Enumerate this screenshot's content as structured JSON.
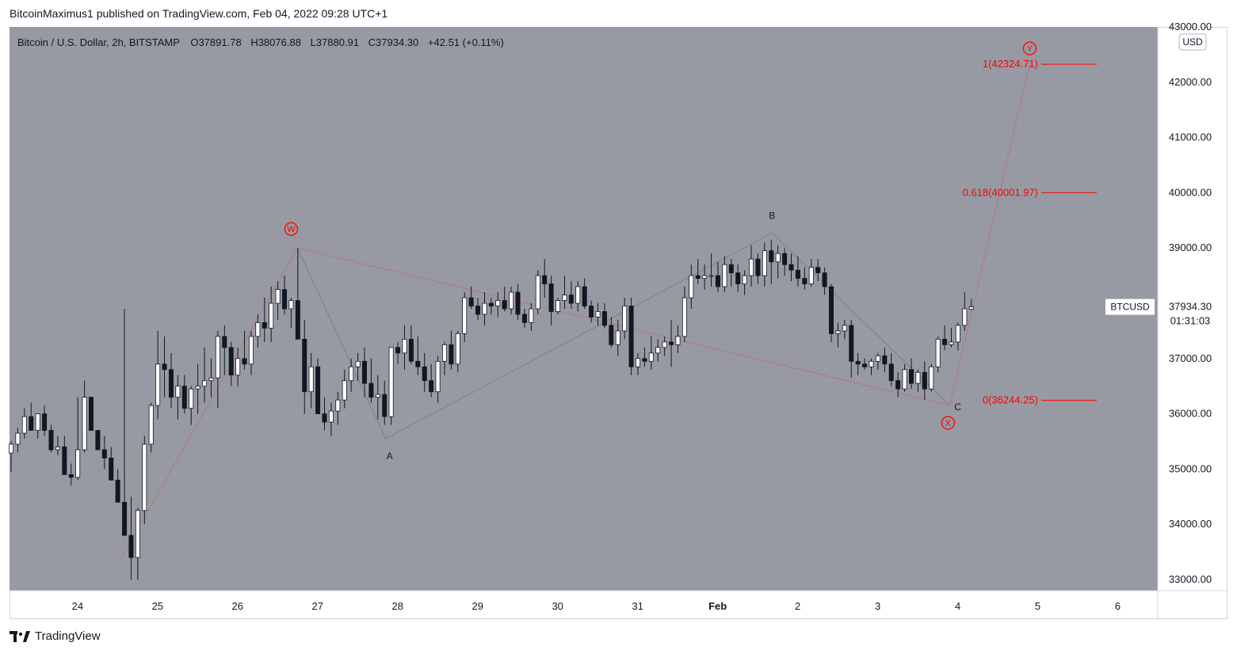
{
  "header": {
    "published_text": "BitcoinMaximus1 published on TradingView.com, Feb 04, 2022 09:28 UTC+1"
  },
  "legend": {
    "symbol": "Bitcoin / U.S. Dollar, 2h, BITSTAMP",
    "o_label": "O",
    "o_value": "37891.78",
    "h_label": "H",
    "h_value": "38076.88",
    "l_label": "L",
    "l_value": "37880.91",
    "c_label": "C",
    "c_value": "37934.30",
    "change": "+42.51 (+0.11%)"
  },
  "currency": "USD",
  "price_label": {
    "name": "BTCUSD",
    "value": "37934.30",
    "countdown": "01:31:03"
  },
  "fib_levels": [
    {
      "label": "1(42324.71)",
      "price": 42324.71
    },
    {
      "label": "0.618(40001.97)",
      "price": 40001.97
    },
    {
      "label": "0(36244.25)",
      "price": 36244.25
    }
  ],
  "wave_labels": {
    "W": "W",
    "X": "X",
    "Y": "Y",
    "A": "A",
    "B": "B",
    "C": "C"
  },
  "colors": {
    "plot_bg": "#979aa3",
    "up_candle": "#ffffff",
    "down_candle": "#131722",
    "wick": "#131722",
    "fib": "#ff0000",
    "wave_main": "#b2777e",
    "wave_sub": "#7e8089",
    "text": "#131722"
  },
  "footer": {
    "brand": "TradingView"
  },
  "chart_data": {
    "type": "candlestick",
    "symbol": "BTCUSD",
    "timeframe": "2h",
    "ylim": [
      32800,
      43000
    ],
    "yticks": [
      33000,
      34000,
      35000,
      36000,
      37000,
      38000,
      39000,
      40000,
      41000,
      42000,
      43000
    ],
    "ytick_labels": [
      "33000.00",
      "34000.00",
      "35000.00",
      "36000.00",
      "37000.00",
      "38000.00",
      "39000.00",
      "40000.00",
      "41000.00",
      "42000.00",
      "43000.00"
    ],
    "xlim_days": [
      23.15,
      37.5
    ],
    "xticks": [
      {
        "day": 24,
        "label": "24"
      },
      {
        "day": 25,
        "label": "25"
      },
      {
        "day": 26,
        "label": "26"
      },
      {
        "day": 27,
        "label": "27"
      },
      {
        "day": 28,
        "label": "28"
      },
      {
        "day": 29,
        "label": "29"
      },
      {
        "day": 30,
        "label": "30"
      },
      {
        "day": 31,
        "label": "31"
      },
      {
        "day": 32,
        "label": "Feb"
      },
      {
        "day": 33,
        "label": "2"
      },
      {
        "day": 34,
        "label": "3"
      },
      {
        "day": 35,
        "label": "4"
      },
      {
        "day": 36,
        "label": "5"
      },
      {
        "day": 37,
        "label": "6"
      }
    ],
    "wave_path_main": [
      {
        "day": 24.55,
        "price": 33400
      },
      {
        "day": 26.75,
        "price": 39000
      },
      {
        "day": 34.9,
        "price": 36150
      },
      {
        "day": 35.9,
        "price": 42324.71
      }
    ],
    "wave_path_sub": [
      {
        "day": 26.75,
        "price": 39000
      },
      {
        "day": 27.85,
        "price": 35550
      },
      {
        "day": 32.68,
        "price": 39270
      },
      {
        "day": 34.9,
        "price": 36150
      }
    ],
    "candles": [
      [
        35290,
        35500,
        34950,
        35450
      ],
      [
        35450,
        35750,
        35300,
        35650
      ],
      [
        35650,
        36100,
        35550,
        35950
      ],
      [
        35950,
        36200,
        35700,
        35700
      ],
      [
        35700,
        36000,
        35550,
        36000
      ],
      [
        36000,
        36150,
        35600,
        35700
      ],
      [
        35700,
        35800,
        35300,
        35350
      ],
      [
        35350,
        35600,
        35250,
        35400
      ],
      [
        35400,
        35600,
        34900,
        34900
      ],
      [
        34900,
        35100,
        34700,
        34850
      ],
      [
        34850,
        36300,
        34800,
        35350
      ],
      [
        35350,
        36600,
        35300,
        36300
      ],
      [
        36300,
        36300,
        35700,
        35700
      ],
      [
        35700,
        35700,
        35350,
        35350
      ],
      [
        35350,
        35600,
        35000,
        35200
      ],
      [
        35200,
        35400,
        34800,
        34800
      ],
      [
        34800,
        35000,
        34400,
        34400
      ],
      [
        34400,
        37900,
        33800,
        33800
      ],
      [
        33800,
        34500,
        33000,
        33400
      ],
      [
        33400,
        34300,
        33000,
        34250
      ],
      [
        34250,
        35600,
        34000,
        35450
      ],
      [
        35450,
        36200,
        35300,
        36150
      ],
      [
        36150,
        37500,
        35900,
        36900
      ],
      [
        36900,
        37400,
        36300,
        36800
      ],
      [
        36800,
        37100,
        36100,
        36300
      ],
      [
        36300,
        36700,
        35900,
        36500
      ],
      [
        36500,
        36700,
        36000,
        36100
      ],
      [
        36100,
        36500,
        35800,
        36450
      ],
      [
        36450,
        36900,
        36000,
        36500
      ],
      [
        36500,
        37200,
        36200,
        36600
      ],
      [
        36600,
        37000,
        36300,
        36650
      ],
      [
        36650,
        37500,
        36100,
        37400
      ],
      [
        37400,
        37600,
        36700,
        37200
      ],
      [
        37200,
        37300,
        36500,
        36700
      ],
      [
        36700,
        37200,
        36500,
        37000
      ],
      [
        37000,
        37500,
        36800,
        36900
      ],
      [
        36900,
        37500,
        36700,
        37400
      ],
      [
        37400,
        37800,
        37200,
        37650
      ],
      [
        37650,
        38100,
        37300,
        37550
      ],
      [
        37550,
        38300,
        37300,
        38000
      ],
      [
        38000,
        38400,
        37700,
        38250
      ],
      [
        38250,
        38500,
        37800,
        37900
      ],
      [
        37900,
        38100,
        37550,
        38050
      ],
      [
        38050,
        39000,
        37400,
        37350
      ],
      [
        37350,
        37700,
        36000,
        36400
      ],
      [
        36400,
        37100,
        36100,
        36850
      ],
      [
        36850,
        37000,
        36000,
        36000
      ],
      [
        36000,
        36300,
        35700,
        35850
      ],
      [
        35850,
        36200,
        35600,
        36050
      ],
      [
        36050,
        36400,
        35800,
        36250
      ],
      [
        36250,
        36800,
        36100,
        36600
      ],
      [
        36600,
        37000,
        36400,
        36850
      ],
      [
        36850,
        37100,
        36600,
        36950
      ],
      [
        36950,
        37200,
        36300,
        36550
      ],
      [
        36550,
        37000,
        36200,
        36300
      ],
      [
        36300,
        36700,
        35900,
        36350
      ],
      [
        36350,
        36600,
        35800,
        35950
      ],
      [
        35950,
        37200,
        35800,
        37200
      ],
      [
        37200,
        37300,
        36900,
        37100
      ],
      [
        37100,
        37600,
        36800,
        37350
      ],
      [
        37350,
        37600,
        36900,
        36950
      ],
      [
        36950,
        37400,
        36700,
        36850
      ],
      [
        36850,
        37100,
        36400,
        36600
      ],
      [
        36600,
        36900,
        36300,
        36400
      ],
      [
        36400,
        37050,
        36200,
        36950
      ],
      [
        36950,
        37300,
        36700,
        37250
      ],
      [
        37250,
        37500,
        36800,
        36900
      ],
      [
        36900,
        37500,
        36750,
        37450
      ],
      [
        37450,
        38200,
        37300,
        38100
      ],
      [
        38100,
        38300,
        37900,
        37950
      ],
      [
        37950,
        38100,
        37700,
        37800
      ],
      [
        37800,
        38200,
        37600,
        38000
      ],
      [
        38000,
        38100,
        37800,
        37950
      ],
      [
        37950,
        38200,
        37750,
        38050
      ],
      [
        38050,
        38300,
        37850,
        37900
      ],
      [
        37900,
        38300,
        37800,
        38200
      ],
      [
        38200,
        38350,
        37700,
        37800
      ],
      [
        37800,
        37900,
        37550,
        37650
      ],
      [
        37650,
        38000,
        37500,
        37900
      ],
      [
        37900,
        38600,
        37800,
        38500
      ],
      [
        38500,
        38800,
        38100,
        38350
      ],
      [
        38350,
        38500,
        37600,
        37850
      ],
      [
        37850,
        38100,
        37800,
        38050
      ],
      [
        38050,
        38500,
        37900,
        38150
      ],
      [
        38150,
        38400,
        37900,
        38000
      ],
      [
        38000,
        38400,
        37850,
        38300
      ],
      [
        38300,
        38450,
        37900,
        37950
      ],
      [
        37950,
        38050,
        37650,
        37750
      ],
      [
        37750,
        38000,
        37600,
        37850
      ],
      [
        37850,
        38000,
        37550,
        37600
      ],
      [
        37600,
        37750,
        37200,
        37250
      ],
      [
        37250,
        37700,
        37050,
        37500
      ],
      [
        37500,
        38100,
        37350,
        37950
      ],
      [
        37950,
        38100,
        36700,
        36850
      ],
      [
        36850,
        37100,
        36700,
        37000
      ],
      [
        37000,
        37200,
        36850,
        36950
      ],
      [
        36950,
        37400,
        36800,
        37100
      ],
      [
        37100,
        37350,
        36950,
        37200
      ],
      [
        37200,
        37400,
        37050,
        37300
      ],
      [
        37300,
        37700,
        36850,
        37250
      ],
      [
        37250,
        37600,
        37100,
        37400
      ],
      [
        37400,
        38300,
        37300,
        38100
      ],
      [
        38100,
        38700,
        37900,
        38500
      ],
      [
        38500,
        38800,
        38350,
        38450
      ],
      [
        38450,
        38700,
        38250,
        38500
      ],
      [
        38500,
        38900,
        38300,
        38500
      ],
      [
        38500,
        38750,
        38200,
        38300
      ],
      [
        38300,
        38850,
        38200,
        38700
      ],
      [
        38700,
        38800,
        38300,
        38550
      ],
      [
        38550,
        38700,
        38200,
        38350
      ],
      [
        38350,
        38600,
        38150,
        38500
      ],
      [
        38500,
        39050,
        38300,
        38800
      ],
      [
        38800,
        38900,
        38350,
        38500
      ],
      [
        38500,
        39100,
        38300,
        38950
      ],
      [
        38950,
        39150,
        38350,
        38750
      ],
      [
        38750,
        39050,
        38450,
        38900
      ],
      [
        38900,
        39000,
        38500,
        38700
      ],
      [
        38700,
        38900,
        38400,
        38600
      ],
      [
        38600,
        38850,
        38300,
        38450
      ],
      [
        38450,
        38650,
        38250,
        38350
      ],
      [
        38350,
        38800,
        38300,
        38650
      ],
      [
        38650,
        38800,
        38400,
        38550
      ],
      [
        38550,
        38650,
        38150,
        38300
      ],
      [
        38300,
        38350,
        37300,
        37450
      ],
      [
        37450,
        37650,
        37200,
        37500
      ],
      [
        37500,
        37700,
        37350,
        37600
      ],
      [
        37600,
        37700,
        36650,
        36950
      ],
      [
        36950,
        37100,
        36700,
        36900
      ],
      [
        36900,
        37000,
        36800,
        36850
      ],
      [
        36850,
        37000,
        36700,
        36950
      ],
      [
        36950,
        37100,
        36800,
        37050
      ],
      [
        37050,
        37200,
        36750,
        36900
      ],
      [
        36900,
        37100,
        36500,
        36600
      ],
      [
        36600,
        36750,
        36300,
        36450
      ],
      [
        36450,
        36900,
        36400,
        36800
      ],
      [
        36800,
        37000,
        36450,
        36550
      ],
      [
        36550,
        36800,
        36400,
        36750
      ],
      [
        36750,
        36950,
        36250,
        36450
      ],
      [
        36450,
        36900,
        36400,
        36850
      ],
      [
        36850,
        37400,
        36750,
        37350
      ],
      [
        37350,
        37600,
        37150,
        37250
      ],
      [
        37250,
        37550,
        37200,
        37300
      ],
      [
        37300,
        37650,
        37150,
        37600
      ],
      [
        37600,
        38200,
        37500,
        37900
      ],
      [
        37891.78,
        38076.88,
        37880.91,
        37934.3
      ]
    ]
  }
}
